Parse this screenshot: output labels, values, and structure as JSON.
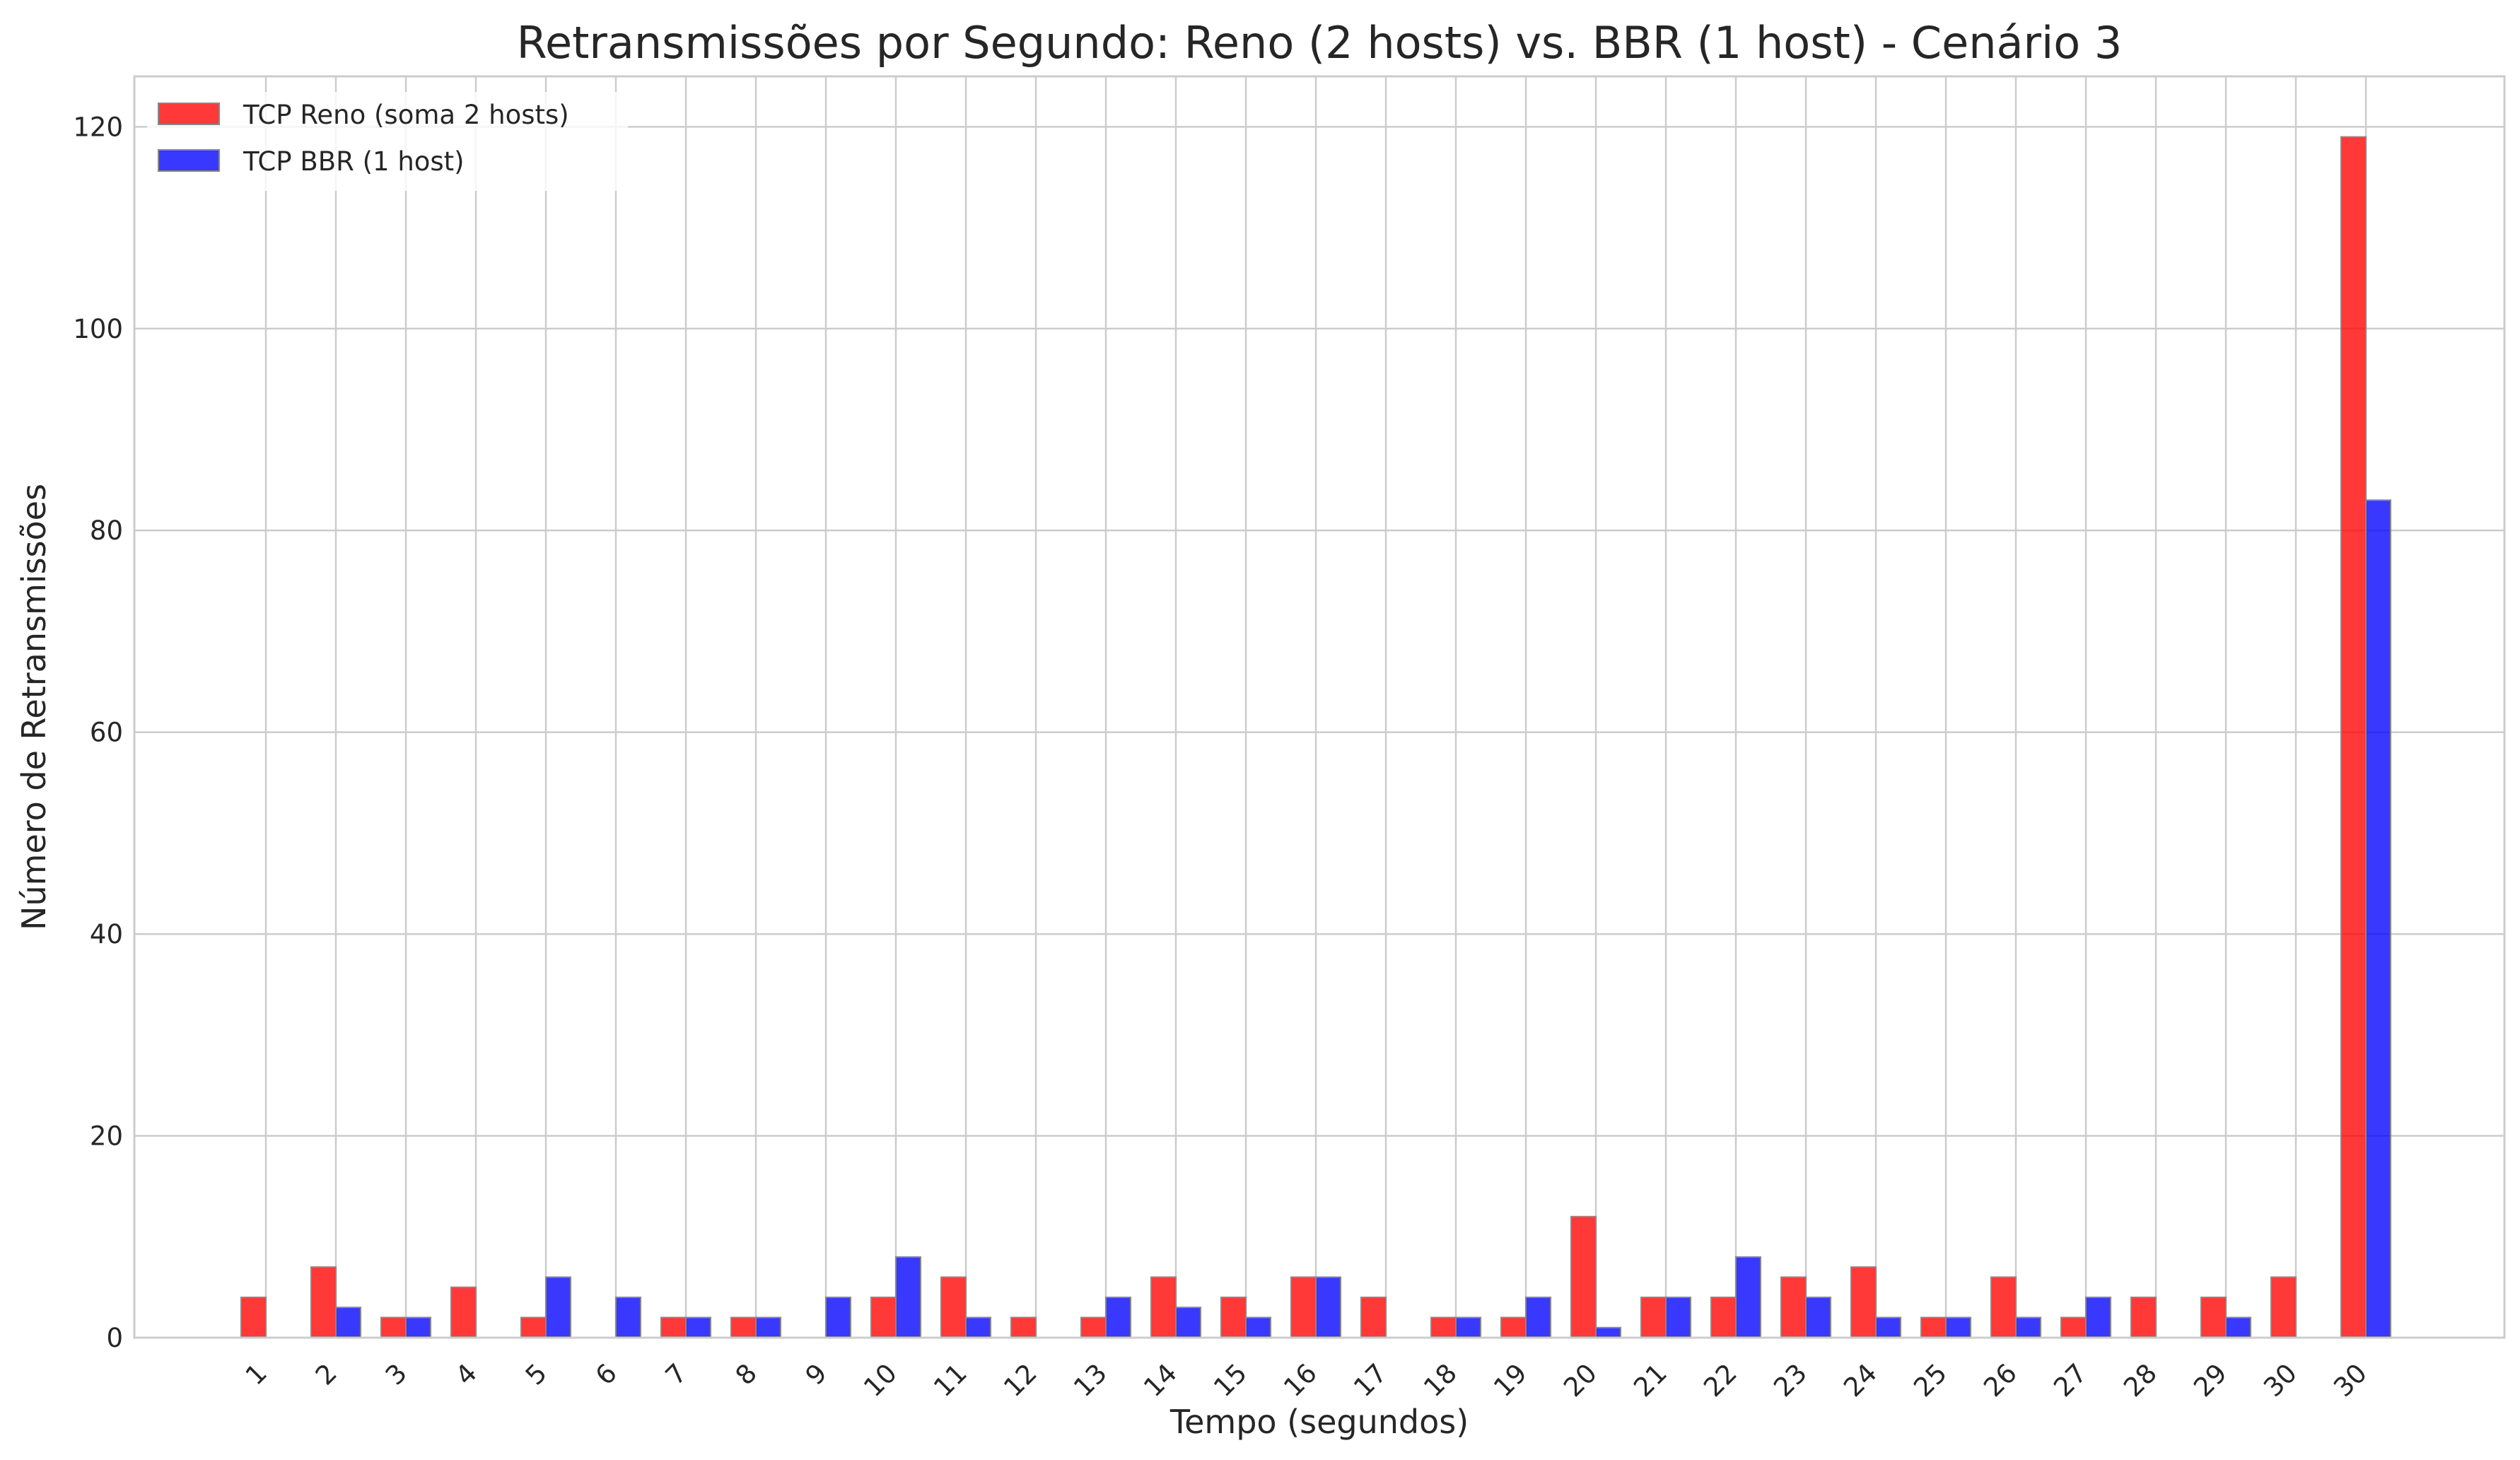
{
  "chart_data": {
    "type": "bar",
    "title": "Retransmissões por Segundo: Reno (2 hosts) vs. BBR (1 host) - Cenário 3",
    "xlabel": "Tempo (segundos)",
    "ylabel": "Número de Retransmissões",
    "categories": [
      "1",
      "2",
      "3",
      "4",
      "5",
      "6",
      "7",
      "8",
      "9",
      "10",
      "11",
      "12",
      "13",
      "14",
      "15",
      "16",
      "17",
      "18",
      "19",
      "20",
      "21",
      "22",
      "23",
      "24",
      "25",
      "26",
      "27",
      "28",
      "29",
      "30",
      "30"
    ],
    "series": [
      {
        "name": "TCP Reno (soma 2 hosts)",
        "color": "#ff0000",
        "values": [
          4,
          7,
          2,
          5,
          2,
          0,
          2,
          2,
          0,
          4,
          6,
          2,
          2,
          6,
          4,
          6,
          4,
          2,
          2,
          12,
          4,
          4,
          6,
          7,
          2,
          6,
          2,
          4,
          4,
          6,
          119
        ]
      },
      {
        "name": "TCP BBR (1 host)",
        "color": "#0000ff",
        "values": [
          0,
          3,
          2,
          0,
          6,
          4,
          2,
          2,
          4,
          8,
          2,
          0,
          4,
          3,
          2,
          6,
          0,
          2,
          4,
          1,
          4,
          8,
          4,
          2,
          2,
          2,
          4,
          0,
          2,
          0,
          83
        ]
      }
    ],
    "ylim": [
      0,
      125
    ],
    "yticks": [
      0,
      20,
      40,
      60,
      80,
      100,
      120
    ],
    "grid": true,
    "legend_position": "top-left"
  }
}
